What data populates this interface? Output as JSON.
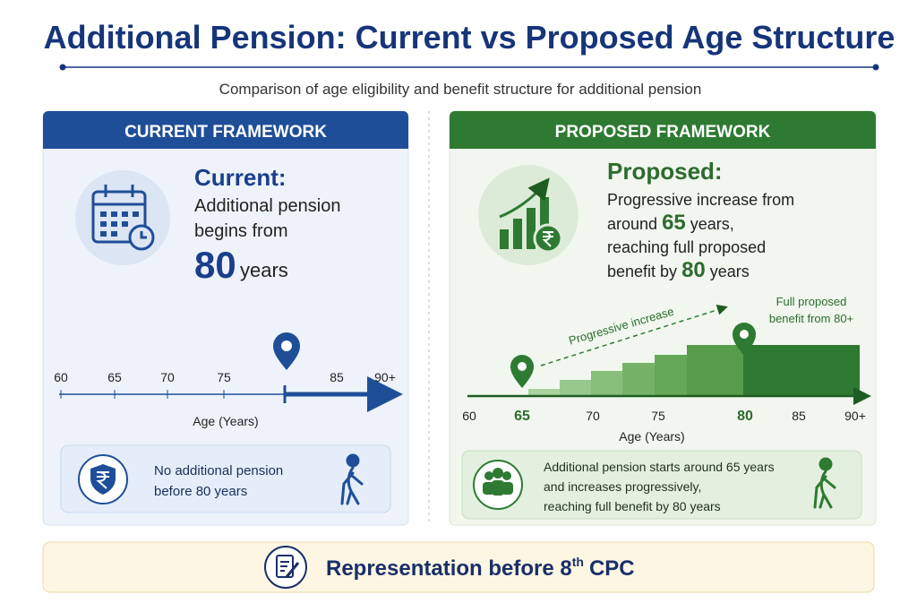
{
  "header": {
    "title": "Additional Pension: Current vs Proposed Age Structure",
    "subtitle": "Comparison of age eligibility and benefit structure for additional pension"
  },
  "current": {
    "label": "CURRENT FRAMEWORK",
    "heading": "Current:",
    "lines": [
      "Additional pension",
      "begins from"
    ],
    "age": "80",
    "age_unit": "years",
    "axis": {
      "ticks": [
        "60",
        "65",
        "70",
        "75",
        "85",
        "90+"
      ],
      "label": "Age (Years)"
    },
    "note": [
      "No additional pension",
      "before 80 years"
    ]
  },
  "proposed": {
    "label": "PROPOSED FRAMEWORK",
    "heading": "Proposed:",
    "lines": [
      [
        "Progressive increase from"
      ],
      [
        "around",
        "65",
        "years,"
      ],
      [
        "reaching full proposed"
      ],
      [
        "benefit by",
        "80",
        "years"
      ]
    ],
    "chart": {
      "trend_label": "Progressive increase",
      "full_label": [
        "Full proposed",
        "benefit from 80+"
      ],
      "ticks": [
        "60",
        "65",
        "70",
        "75",
        "80",
        "85",
        "90+"
      ],
      "label": "Age (Years)"
    },
    "note": [
      "Additional pension starts around 65 years",
      "and increases progressively,",
      "reaching full benefit by 80 years"
    ]
  },
  "footer": {
    "text": "Representation before 8",
    "superscript": "th",
    "suffix": "CPC"
  }
}
